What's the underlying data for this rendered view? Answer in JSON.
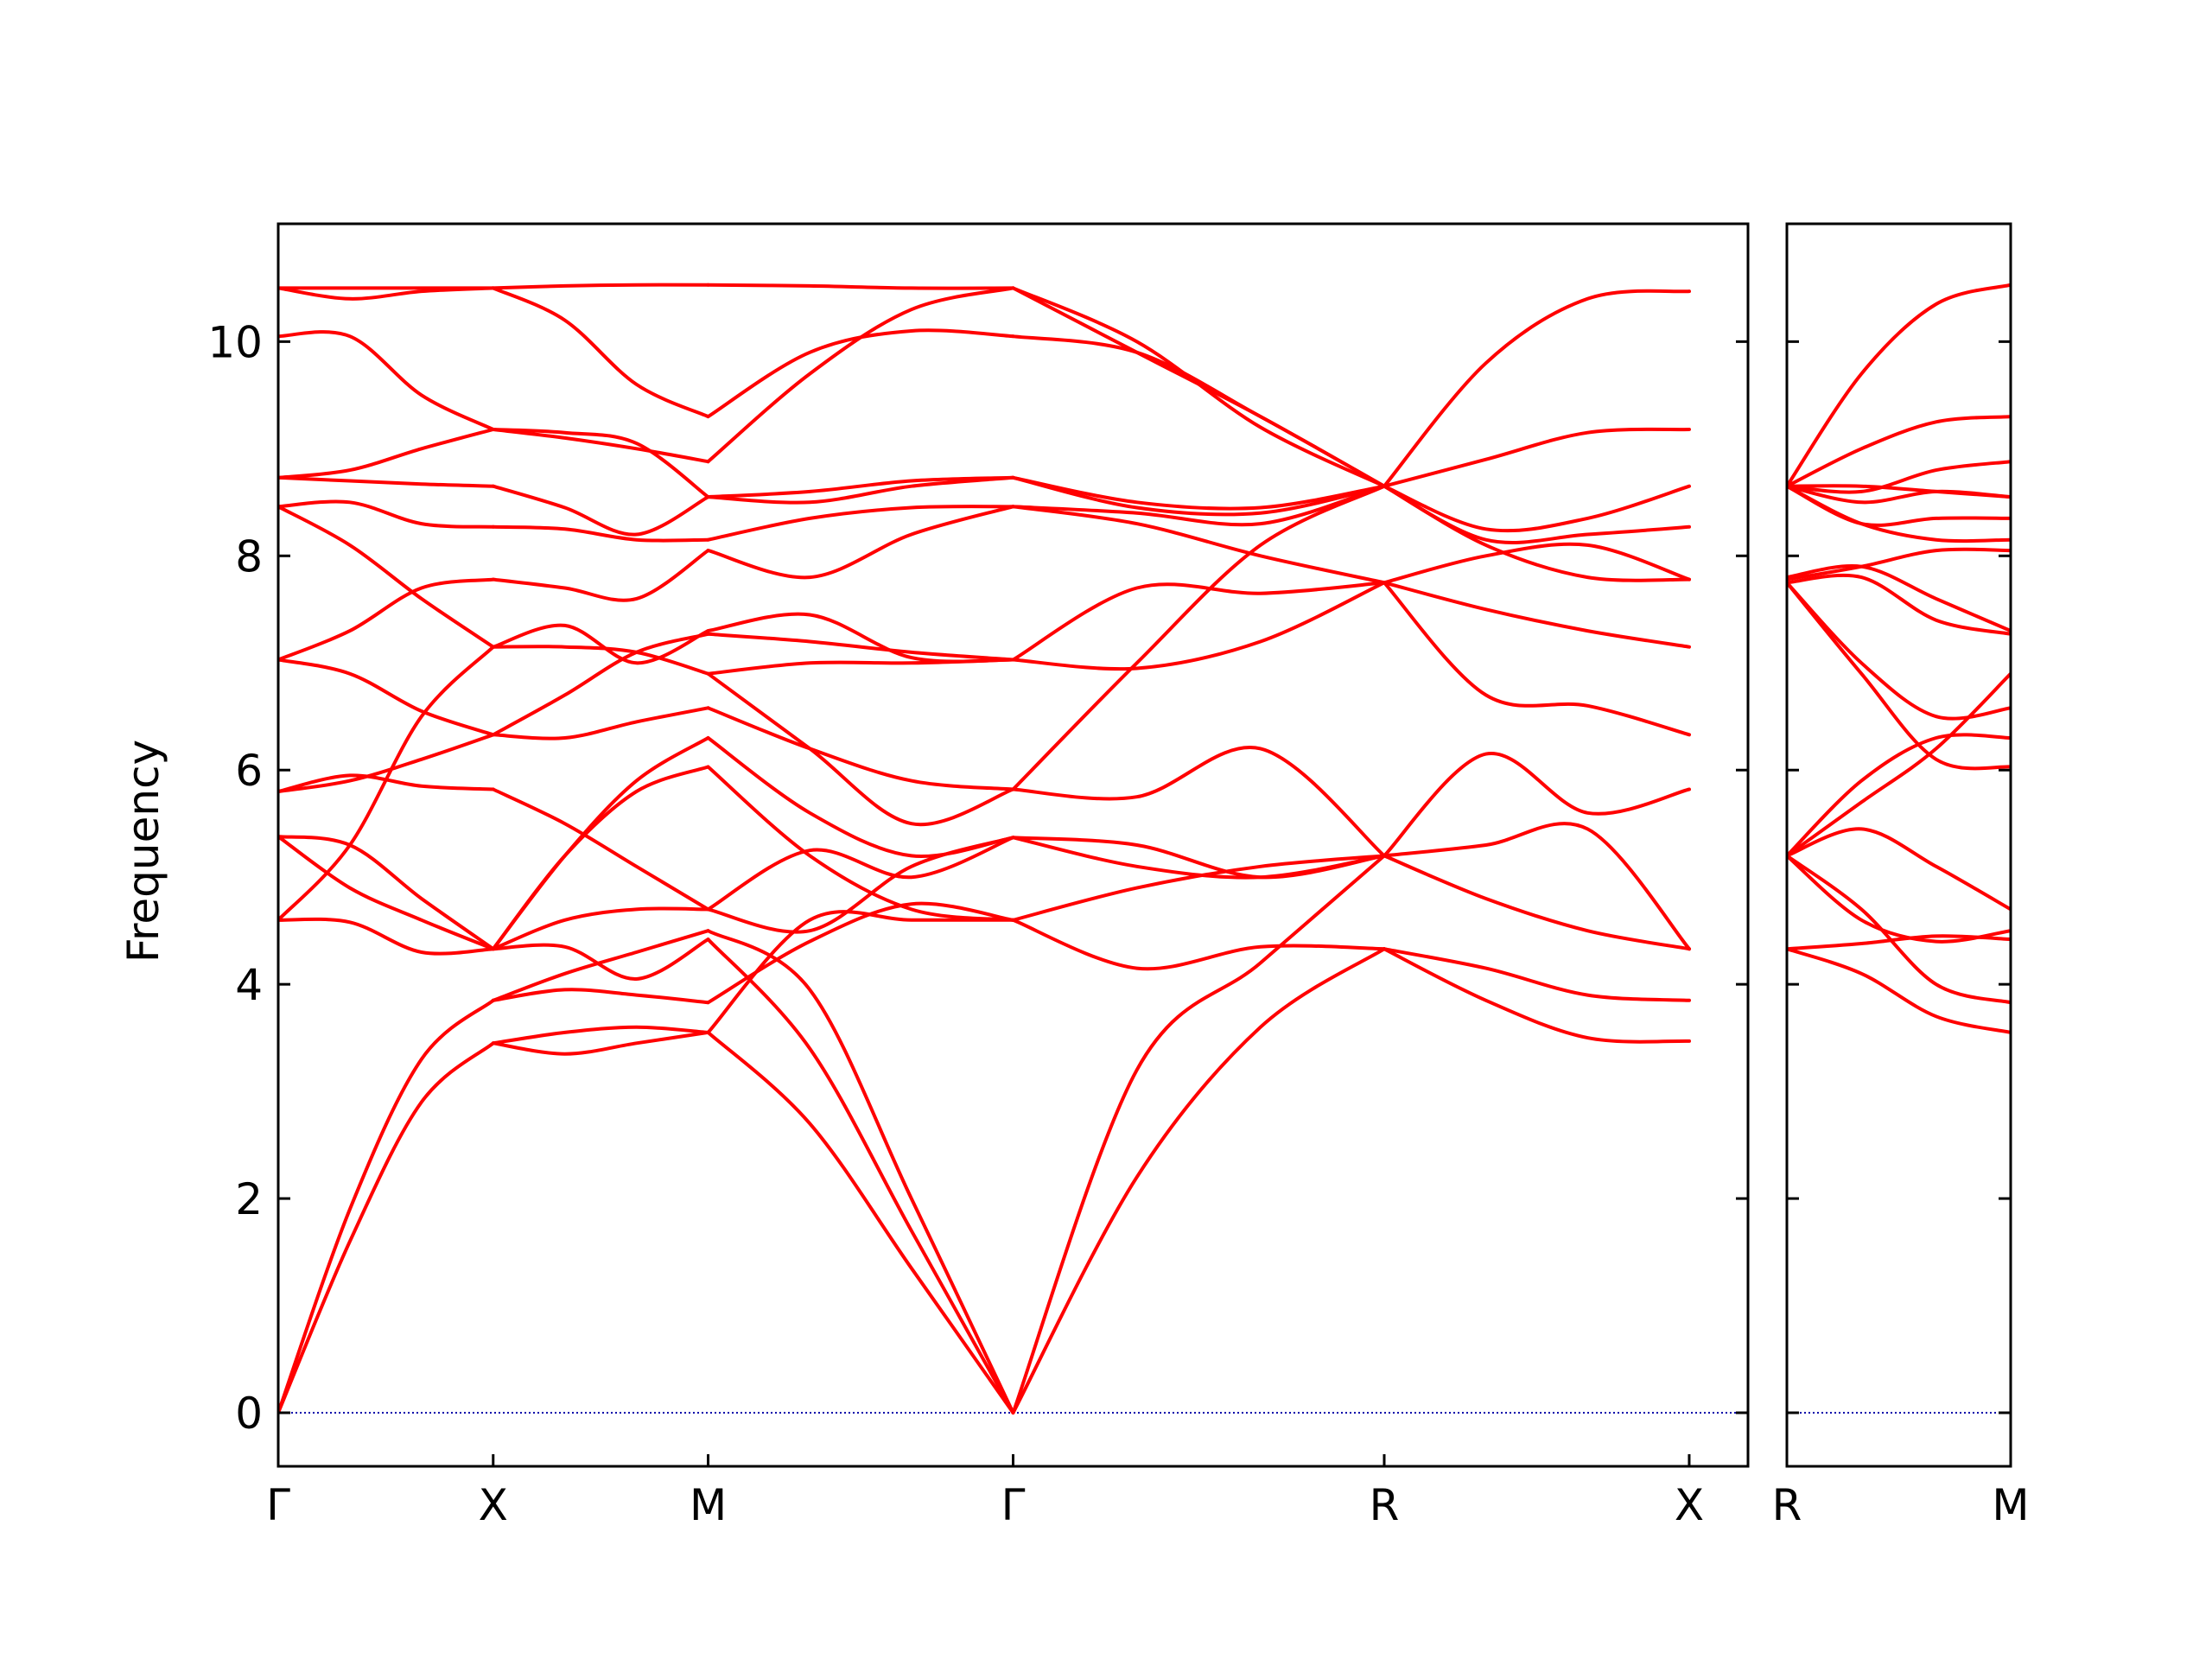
{
  "chart_data": {
    "type": "line",
    "ylabel": "Frequency",
    "ylim": [
      -0.5,
      11.1
    ],
    "yticks": [
      0,
      2,
      4,
      6,
      8,
      10
    ],
    "ytick_labels": [
      "0",
      "2",
      "4",
      "6",
      "8",
      "10"
    ],
    "grid": false,
    "legend": "none",
    "line_color": "#ff0000",
    "zero_line_color": "#0000aa",
    "zero_line_style": "dotted",
    "panels": [
      {
        "name": "main",
        "xlim": [
          0,
          4.0
        ],
        "segment_ticks": [
          0,
          0.585,
          1.17,
          2.0,
          3.01,
          3.84
        ],
        "tick_labels": [
          "Γ",
          "X",
          "M",
          "Γ",
          "R",
          "X"
        ],
        "segments": [
          {
            "from": "Γ",
            "to": "X",
            "x0": 0,
            "x1": 0.585,
            "bands": [
              [
                0.0,
                1.6,
                2.9,
                3.45
              ],
              [
                0.0,
                1.9,
                3.3,
                3.85
              ],
              [
                4.6,
                4.58,
                4.3,
                4.33
              ],
              [
                4.6,
                5.3,
                6.5,
                7.15
              ],
              [
                5.38,
                4.9,
                4.6,
                4.33
              ],
              [
                5.38,
                5.3,
                4.8,
                4.33
              ],
              [
                5.8,
                5.95,
                5.85,
                5.82
              ],
              [
                5.8,
                5.9,
                6.1,
                6.33
              ],
              [
                7.03,
                6.9,
                6.55,
                6.33
              ],
              [
                7.03,
                7.3,
                7.7,
                7.78
              ],
              [
                8.46,
                8.1,
                7.6,
                7.15
              ],
              [
                8.46,
                8.5,
                8.3,
                8.27
              ],
              [
                8.73,
                8.7,
                8.67,
                8.65
              ],
              [
                8.73,
                8.8,
                9.0,
                9.18
              ],
              [
                10.05,
                10.05,
                9.5,
                9.18
              ],
              [
                10.5,
                10.4,
                10.47,
                10.5
              ],
              [
                10.5,
                10.5,
                10.5,
                10.5
              ]
            ]
          },
          {
            "from": "X",
            "to": "M",
            "x0": 0.585,
            "x1": 1.17,
            "bands": [
              [
                3.45,
                3.35,
                3.45,
                3.55
              ],
              [
                3.45,
                3.55,
                3.6,
                3.55
              ],
              [
                3.85,
                3.95,
                3.9,
                3.83
              ],
              [
                3.85,
                4.1,
                4.3,
                4.5
              ],
              [
                4.33,
                4.35,
                4.05,
                4.42
              ],
              [
                4.33,
                4.6,
                4.7,
                4.7
              ],
              [
                4.33,
                5.2,
                5.8,
                6.03
              ],
              [
                4.33,
                5.2,
                5.9,
                6.3
              ],
              [
                5.82,
                5.5,
                5.1,
                4.7
              ],
              [
                6.33,
                6.3,
                6.45,
                6.58
              ],
              [
                7.15,
                7.15,
                7.1,
                6.9
              ],
              [
                6.33,
                6.7,
                7.1,
                7.27
              ],
              [
                7.15,
                7.35,
                7.0,
                7.3
              ],
              [
                7.78,
                7.7,
                7.6,
                8.05
              ],
              [
                8.27,
                8.25,
                8.15,
                8.15
              ],
              [
                8.65,
                8.45,
                8.2,
                8.55
              ],
              [
                9.18,
                9.1,
                9.0,
                8.88
              ],
              [
                9.18,
                9.15,
                9.05,
                8.55
              ],
              [
                10.5,
                10.2,
                9.6,
                9.3
              ],
              [
                10.5,
                10.52,
                10.53,
                10.53
              ]
            ]
          },
          {
            "from": "M",
            "to": "Γ",
            "x0": 1.17,
            "x1": 2.0,
            "bands": [
              [
                3.55,
                2.7,
                1.35,
                0.0
              ],
              [
                4.42,
                3.4,
                1.7,
                0.0
              ],
              [
                4.5,
                3.95,
                2.0,
                0.0
              ],
              [
                3.55,
                4.6,
                4.6,
                4.6
              ],
              [
                3.83,
                4.4,
                4.75,
                4.6
              ],
              [
                4.7,
                4.5,
                5.1,
                5.37
              ],
              [
                4.7,
                5.25,
                5.0,
                5.37
              ],
              [
                6.03,
                5.2,
                4.7,
                4.6
              ],
              [
                6.3,
                5.6,
                5.2,
                5.37
              ],
              [
                6.58,
                6.2,
                5.9,
                5.82
              ],
              [
                6.9,
                6.2,
                5.5,
                5.82
              ],
              [
                6.9,
                7.0,
                7.0,
                7.03
              ],
              [
                7.27,
                7.2,
                7.1,
                7.03
              ],
              [
                7.3,
                7.45,
                7.05,
                7.03
              ],
              [
                8.05,
                7.8,
                8.2,
                8.46
              ],
              [
                8.15,
                8.35,
                8.45,
                8.46
              ],
              [
                8.55,
                8.6,
                8.7,
                8.73
              ],
              [
                8.55,
                8.5,
                8.65,
                8.73
              ],
              [
                8.88,
                9.7,
                10.3,
                10.5
              ],
              [
                9.3,
                9.9,
                10.1,
                10.05
              ],
              [
                10.53,
                10.52,
                10.5,
                10.5
              ]
            ]
          },
          {
            "from": "Γ",
            "to": "R",
            "x0": 2.0,
            "x1": 3.01,
            "bands": [
              [
                0.0,
                2.2,
                3.6,
                4.33
              ],
              [
                0.0,
                3.2,
                4.2,
                5.2
              ],
              [
                4.6,
                4.15,
                4.35,
                4.33
              ],
              [
                4.6,
                4.9,
                5.1,
                5.2
              ],
              [
                5.37,
                5.1,
                5.0,
                5.2
              ],
              [
                5.37,
                5.3,
                5.0,
                5.2
              ],
              [
                5.82,
                5.75,
                6.2,
                5.2
              ],
              [
                5.82,
                7.0,
                8.1,
                8.65
              ],
              [
                7.03,
                6.95,
                7.2,
                7.75
              ],
              [
                7.03,
                7.7,
                7.65,
                7.75
              ],
              [
                8.46,
                8.3,
                8.0,
                7.75
              ],
              [
                8.46,
                8.4,
                8.3,
                8.65
              ],
              [
                8.73,
                8.45,
                8.4,
                8.65
              ],
              [
                8.73,
                8.5,
                8.45,
                8.65
              ],
              [
                10.05,
                9.9,
                9.3,
                8.65
              ],
              [
                10.5,
                10.0,
                9.2,
                8.65
              ],
              [
                10.5,
                9.9,
                9.3,
                8.65
              ]
            ]
          },
          {
            "from": "R",
            "to": "X",
            "x0": 3.01,
            "x1": 3.84,
            "bands": [
              [
                4.33,
                3.85,
                3.5,
                3.47
              ],
              [
                4.33,
                4.15,
                3.9,
                3.85
              ],
              [
                5.2,
                4.8,
                4.5,
                4.33
              ],
              [
                5.2,
                5.3,
                5.45,
                4.33
              ],
              [
                5.2,
                6.15,
                5.6,
                5.82
              ],
              [
                7.75,
                6.7,
                6.6,
                6.33
              ],
              [
                7.75,
                7.5,
                7.3,
                7.15
              ],
              [
                7.75,
                8.0,
                8.1,
                7.78
              ],
              [
                8.65,
                8.15,
                8.2,
                8.27
              ],
              [
                8.65,
                8.1,
                7.8,
                7.78
              ],
              [
                8.65,
                8.25,
                8.35,
                8.65
              ],
              [
                8.65,
                8.9,
                9.15,
                9.18
              ],
              [
                8.65,
                9.8,
                10.4,
                10.47
              ]
            ]
          }
        ]
      },
      {
        "name": "side",
        "xlim": [
          0,
          0.585
        ],
        "segment_ticks": [
          0,
          0.585
        ],
        "tick_labels": [
          "R",
          "M"
        ],
        "segments": [
          {
            "from": "R",
            "to": "M",
            "x0": 0,
            "x1": 0.585,
            "bands": [
              [
                4.33,
                4.38,
                4.45,
                4.42
              ],
              [
                4.33,
                4.1,
                3.7,
                3.55
              ],
              [
                5.2,
                4.7,
                4.0,
                3.83
              ],
              [
                5.2,
                4.6,
                4.4,
                4.5
              ],
              [
                5.2,
                5.45,
                5.1,
                4.7
              ],
              [
                5.2,
                5.9,
                6.3,
                6.3
              ],
              [
                5.2,
                5.7,
                6.2,
                6.9
              ],
              [
                7.75,
                7.0,
                6.5,
                6.58
              ],
              [
                7.75,
                6.9,
                6.1,
                6.03
              ],
              [
                7.75,
                7.8,
                7.4,
                7.27
              ],
              [
                7.8,
                7.9,
                7.6,
                7.3
              ],
              [
                7.78,
                7.9,
                8.05,
                8.05
              ],
              [
                8.65,
                8.3,
                8.15,
                8.15
              ],
              [
                8.65,
                8.5,
                8.6,
                8.55
              ],
              [
                8.65,
                8.65,
                8.6,
                8.55
              ],
              [
                8.65,
                8.3,
                8.35,
                8.35
              ],
              [
                8.65,
                8.6,
                8.8,
                8.88
              ],
              [
                8.65,
                9.0,
                9.25,
                9.3
              ],
              [
                8.65,
                9.7,
                10.35,
                10.53
              ]
            ]
          }
        ]
      }
    ]
  }
}
